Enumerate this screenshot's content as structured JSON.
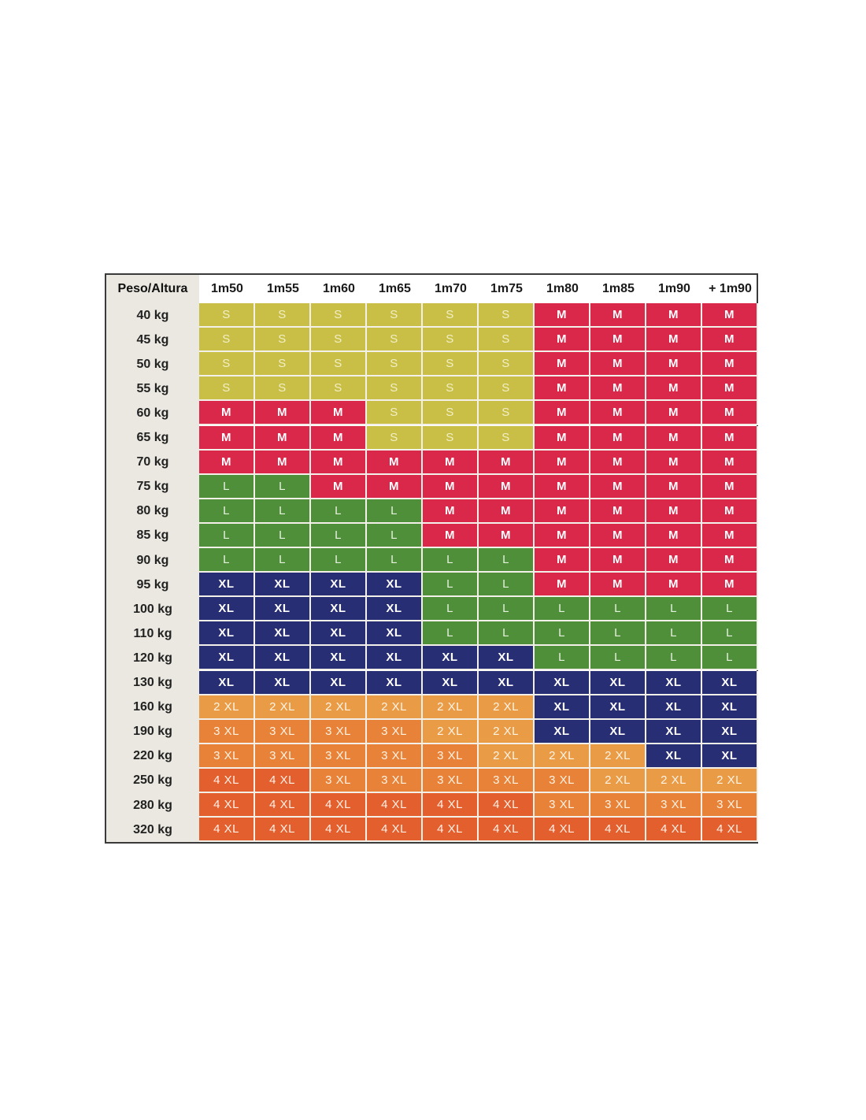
{
  "chart_data": {
    "type": "table",
    "corner_label": "Peso/Altura",
    "columns": [
      "1m50",
      "1m55",
      "1m60",
      "1m65",
      "1m70",
      "1m75",
      "1m80",
      "1m85",
      "1m90",
      "+ 1m90"
    ],
    "rows": [
      "40 kg",
      "45 kg",
      "50 kg",
      "55 kg",
      "60 kg",
      "65 kg",
      "70 kg",
      "75 kg",
      "80 kg",
      "85 kg",
      "90 kg",
      "95 kg",
      "100 kg",
      "110 kg",
      "120 kg",
      "130 kg",
      "160 kg",
      "190 kg",
      "220 kg",
      "250 kg",
      "280 kg",
      "320 kg"
    ],
    "cells": [
      [
        "S",
        "S",
        "S",
        "S",
        "S",
        "S",
        "M",
        "M",
        "M",
        "M"
      ],
      [
        "S",
        "S",
        "S",
        "S",
        "S",
        "S",
        "M",
        "M",
        "M",
        "M"
      ],
      [
        "S",
        "S",
        "S",
        "S",
        "S",
        "S",
        "M",
        "M",
        "M",
        "M"
      ],
      [
        "S",
        "S",
        "S",
        "S",
        "S",
        "S",
        "M",
        "M",
        "M",
        "M"
      ],
      [
        "M",
        "M",
        "M",
        "S",
        "S",
        "S",
        "M",
        "M",
        "M",
        "M"
      ],
      [
        "M",
        "M",
        "M",
        "S",
        "S",
        "S",
        "M",
        "M",
        "M",
        "M"
      ],
      [
        "M",
        "M",
        "M",
        "M",
        "M",
        "M",
        "M",
        "M",
        "M",
        "M"
      ],
      [
        "L",
        "L",
        "M",
        "M",
        "M",
        "M",
        "M",
        "M",
        "M",
        "M"
      ],
      [
        "L",
        "L",
        "L",
        "L",
        "M",
        "M",
        "M",
        "M",
        "M",
        "M"
      ],
      [
        "L",
        "L",
        "L",
        "L",
        "M",
        "M",
        "M",
        "M",
        "M",
        "M"
      ],
      [
        "L",
        "L",
        "L",
        "L",
        "L",
        "L",
        "M",
        "M",
        "M",
        "M"
      ],
      [
        "XL",
        "XL",
        "XL",
        "XL",
        "L",
        "L",
        "M",
        "M",
        "M",
        "M"
      ],
      [
        "XL",
        "XL",
        "XL",
        "XL",
        "L",
        "L",
        "L",
        "L",
        "L",
        "L"
      ],
      [
        "XL",
        "XL",
        "XL",
        "XL",
        "L",
        "L",
        "L",
        "L",
        "L",
        "L"
      ],
      [
        "XL",
        "XL",
        "XL",
        "XL",
        "XL",
        "XL",
        "L",
        "L",
        "L",
        "L"
      ],
      [
        "XL",
        "XL",
        "XL",
        "XL",
        "XL",
        "XL",
        "XL",
        "XL",
        "XL",
        "XL"
      ],
      [
        "2 XL",
        "2 XL",
        "2 XL",
        "2 XL",
        "2 XL",
        "2 XL",
        "XL",
        "XL",
        "XL",
        "XL"
      ],
      [
        "3 XL",
        "3 XL",
        "3 XL",
        "3 XL",
        "2 XL",
        "2 XL",
        "XL",
        "XL",
        "XL",
        "XL"
      ],
      [
        "3 XL",
        "3 XL",
        "3 XL",
        "3 XL",
        "3 XL",
        "2 XL",
        "2 XL",
        "2 XL",
        "XL",
        "XL"
      ],
      [
        "4 XL",
        "4 XL",
        "3 XL",
        "3 XL",
        "3 XL",
        "3 XL",
        "3 XL",
        "2 XL",
        "2 XL",
        "2 XL"
      ],
      [
        "4 XL",
        "4 XL",
        "4 XL",
        "4 XL",
        "4 XL",
        "4 XL",
        "3 XL",
        "3 XL",
        "3 XL",
        "3 XL"
      ],
      [
        "4 XL",
        "4 XL",
        "4 XL",
        "4 XL",
        "4 XL",
        "4 XL",
        "4 XL",
        "4 XL",
        "4 XL",
        "4 XL"
      ]
    ],
    "size_colors": {
      "S": "#c9bf47",
      "M": "#d9284a",
      "L": "#4f8f3a",
      "XL": "#282e73",
      "2 XL": "#ea9b45",
      "3 XL": "#e88238",
      "4 XL": "#e45f2e"
    }
  }
}
